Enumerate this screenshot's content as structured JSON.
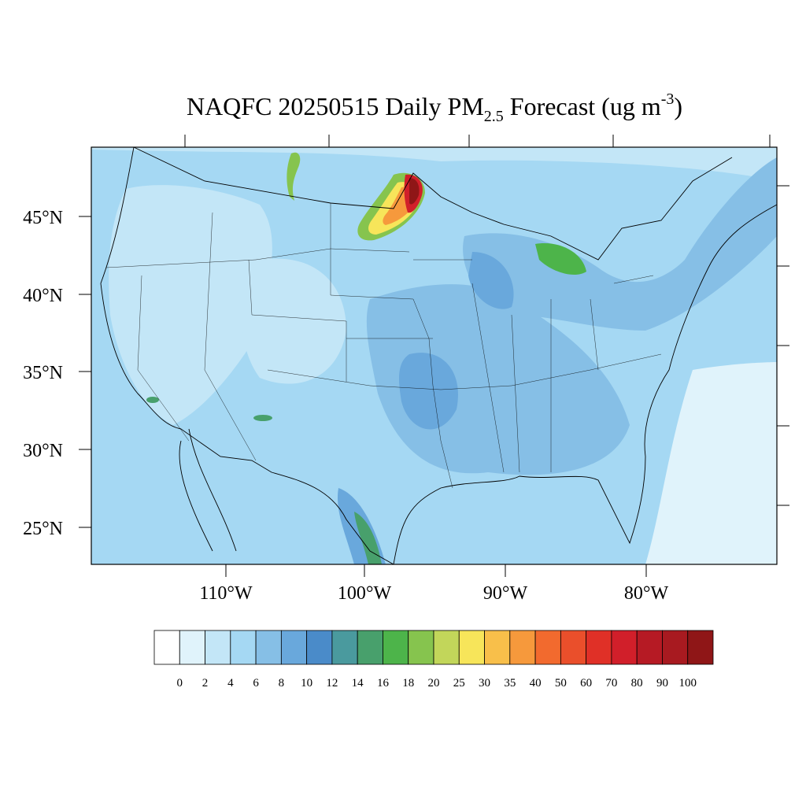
{
  "map": {
    "title": {
      "main": "NAQFC 20250515 Daily PM",
      "sub": "2.5",
      "mid": " Forecast (ug m",
      "sup": "-3",
      "end": ")"
    },
    "lat_labels": [
      "45°N",
      "40°N",
      "35°N",
      "30°N",
      "25°N"
    ],
    "lon_labels": [
      "110°W",
      "100°W",
      "90°W",
      "80°W"
    ],
    "colorbar": {
      "levels": [
        0,
        2,
        4,
        6,
        8,
        10,
        12,
        14,
        16,
        18,
        20,
        25,
        30,
        35,
        40,
        50,
        60,
        70,
        80,
        90,
        100
      ],
      "colors": [
        "#ffffff",
        "#e0f3fb",
        "#c3e6f7",
        "#a5d8f3",
        "#86bfe6",
        "#69a8dc",
        "#4a8bc9",
        "#4a9a9e",
        "#48a06c",
        "#4db44a",
        "#86c44e",
        "#c2d65a",
        "#f7e55a",
        "#f8bf4a",
        "#f6993c",
        "#f26a2e",
        "#ea4f2b",
        "#e03027",
        "#d11f2a",
        "#b61a24",
        "#a81a20",
        "#8f1617"
      ]
    }
  }
}
